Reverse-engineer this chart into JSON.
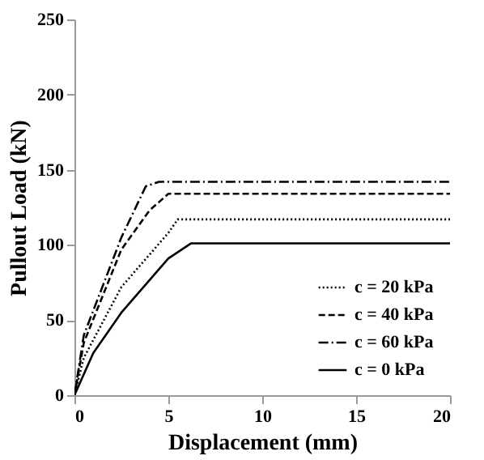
{
  "chart_data": {
    "type": "line",
    "xlabel": "Displacement (mm)",
    "ylabel": "Pullout Load (kN)",
    "xlim": [
      0,
      20
    ],
    "xticks": [
      0,
      5,
      10,
      15,
      20
    ],
    "ylim": [
      0,
      250
    ],
    "yticks": [
      0,
      50,
      100,
      150,
      200,
      250
    ],
    "grid": false,
    "legend": "bottom right",
    "marker": "none",
    "series": [
      {
        "name": "c = 20 kPa",
        "color": "#000000",
        "line_style": "dotted",
        "x": [
          0,
          0.5,
          2.5,
          5,
          5.5,
          20
        ],
        "values": [
          0,
          25,
          72,
          108,
          117,
          117
        ]
      },
      {
        "name": "c = 40 kPa",
        "color": "#000000",
        "line_style": "dashed",
        "x": [
          0,
          0.5,
          2.5,
          4,
          5,
          20
        ],
        "values": [
          0,
          35,
          97,
          123,
          134,
          134
        ]
      },
      {
        "name": "c = 60 kPa",
        "color": "#000000",
        "line_style": "dashdot",
        "x": [
          0,
          0.5,
          2.5,
          3.8,
          4.5,
          20
        ],
        "values": [
          0,
          40,
          105,
          139,
          142,
          142
        ]
      },
      {
        "name": "c = 0 kPa",
        "color": "#000000",
        "line_style": "solid",
        "x": [
          0,
          1,
          2.5,
          5,
          6.2,
          20
        ],
        "values": [
          0,
          28,
          55,
          91,
          101,
          101
        ]
      }
    ]
  }
}
